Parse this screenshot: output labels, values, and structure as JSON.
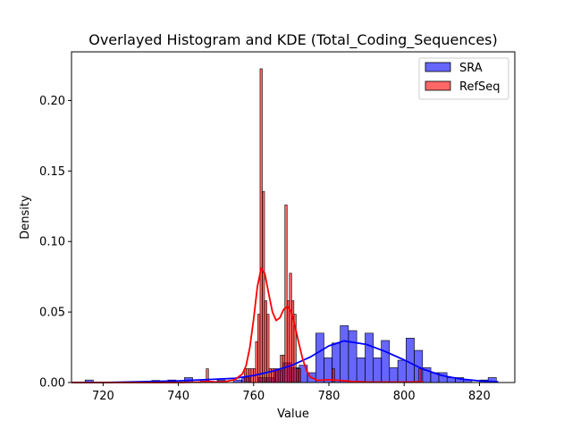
{
  "chart_data": {
    "type": "histogram",
    "title": "Overlayed Histogram and KDE (Total_Coding_Sequences)",
    "xlabel": "Value",
    "ylabel": "Density",
    "xlim": [
      711.6,
      829.4
    ],
    "ylim": [
      0,
      0.2345
    ],
    "xticks": [
      720,
      740,
      760,
      780,
      800,
      820
    ],
    "yticks": [
      0.0,
      0.05,
      0.1,
      0.15,
      0.2
    ],
    "ytick_labels": [
      "0.00",
      "0.05",
      "0.10",
      "0.15",
      "0.20"
    ],
    "grid": false,
    "legend_position": "upper right",
    "series": [
      {
        "name": "SRA",
        "color": "#0000ff",
        "fill_alpha": 0.6,
        "bin_width": 2.18,
        "bins": [
          {
            "x": 716.3,
            "y": 0.0018
          },
          {
            "x": 734.0,
            "y": 0.0015
          },
          {
            "x": 738.3,
            "y": 0.0018
          },
          {
            "x": 742.7,
            "y": 0.0035
          },
          {
            "x": 747.0,
            "y": 0.0018
          },
          {
            "x": 751.4,
            "y": 0.0018
          },
          {
            "x": 755.7,
            "y": 0.0018
          },
          {
            "x": 758.0,
            "y": 0.0035
          },
          {
            "x": 762.3,
            "y": 0.0035
          },
          {
            "x": 764.5,
            "y": 0.0035
          },
          {
            "x": 766.7,
            "y": 0.0088
          },
          {
            "x": 768.8,
            "y": 0.014
          },
          {
            "x": 771.0,
            "y": 0.0105
          },
          {
            "x": 773.2,
            "y": 0.0123
          },
          {
            "x": 775.4,
            "y": 0.007
          },
          {
            "x": 777.6,
            "y": 0.035
          },
          {
            "x": 779.8,
            "y": 0.0175
          },
          {
            "x": 781.9,
            "y": 0.028
          },
          {
            "x": 784.1,
            "y": 0.0403
          },
          {
            "x": 786.3,
            "y": 0.0368
          },
          {
            "x": 788.5,
            "y": 0.0175
          },
          {
            "x": 790.7,
            "y": 0.035
          },
          {
            "x": 792.9,
            "y": 0.0175
          },
          {
            "x": 795.0,
            "y": 0.0298
          },
          {
            "x": 797.2,
            "y": 0.0105
          },
          {
            "x": 799.4,
            "y": 0.0158
          },
          {
            "x": 801.6,
            "y": 0.0315
          },
          {
            "x": 803.8,
            "y": 0.0228
          },
          {
            "x": 806.0,
            "y": 0.0105
          },
          {
            "x": 808.1,
            "y": 0.007
          },
          {
            "x": 810.3,
            "y": 0.007
          },
          {
            "x": 812.5,
            "y": 0.0035
          },
          {
            "x": 814.7,
            "y": 0.0035
          },
          {
            "x": 816.9,
            "y": 0.0018
          },
          {
            "x": 821.2,
            "y": 0.0018
          },
          {
            "x": 823.4,
            "y": 0.0035
          }
        ],
        "kde": {
          "x": [
            711.6,
            720,
            740,
            755,
            760,
            765,
            770,
            775,
            780,
            784,
            790,
            795,
            800,
            805,
            810,
            815,
            820,
            825
          ],
          "y": [
            0.0,
            0.0,
            0.0012,
            0.003,
            0.005,
            0.008,
            0.012,
            0.018,
            0.026,
            0.0295,
            0.027,
            0.022,
            0.016,
            0.0095,
            0.005,
            0.0025,
            0.0012,
            0.0005
          ]
        }
      },
      {
        "name": "RefSeq",
        "color": "#ff0000",
        "fill_alpha": 0.6,
        "bin_width": 0.6,
        "bins": [
          {
            "x": 747.7,
            "y": 0.0098
          },
          {
            "x": 757.8,
            "y": 0.0098
          },
          {
            "x": 758.4,
            "y": 0.0098
          },
          {
            "x": 759.0,
            "y": 0.0098
          },
          {
            "x": 759.6,
            "y": 0.0098
          },
          {
            "x": 760.2,
            "y": 0.0098
          },
          {
            "x": 760.8,
            "y": 0.029
          },
          {
            "x": 761.4,
            "y": 0.0484
          },
          {
            "x": 762.0,
            "y": 0.2225
          },
          {
            "x": 762.6,
            "y": 0.1355
          },
          {
            "x": 763.2,
            "y": 0.058
          },
          {
            "x": 763.8,
            "y": 0.0484
          },
          {
            "x": 764.4,
            "y": 0.0098
          },
          {
            "x": 765.0,
            "y": 0.0098
          },
          {
            "x": 765.6,
            "y": 0.0098
          },
          {
            "x": 766.2,
            "y": 0.0098
          },
          {
            "x": 766.8,
            "y": 0.0098
          },
          {
            "x": 767.4,
            "y": 0.0194
          },
          {
            "x": 768.0,
            "y": 0.0194
          },
          {
            "x": 768.6,
            "y": 0.126
          },
          {
            "x": 769.2,
            "y": 0.058
          },
          {
            "x": 769.8,
            "y": 0.0775
          },
          {
            "x": 770.4,
            "y": 0.058
          },
          {
            "x": 771.0,
            "y": 0.0484
          },
          {
            "x": 771.6,
            "y": 0.0098
          },
          {
            "x": 772.2,
            "y": 0.0098
          },
          {
            "x": 781.2,
            "y": 0.0098
          },
          {
            "x": 804.2,
            "y": 0.0098
          }
        ],
        "kde": {
          "x": [
            711.6,
            740,
            745,
            748,
            750,
            752,
            755,
            757,
            758,
            759,
            760,
            761,
            762,
            763,
            764,
            765,
            766,
            767,
            768,
            769,
            770,
            771,
            772,
            773,
            774,
            775,
            777,
            780,
            783,
            786,
            790,
            800,
            805
          ],
          "y": [
            0.0,
            0.0,
            0.0003,
            0.0008,
            0.0004,
            0.0005,
            0.002,
            0.006,
            0.012,
            0.025,
            0.045,
            0.068,
            0.081,
            0.077,
            0.063,
            0.05,
            0.044,
            0.046,
            0.052,
            0.054,
            0.05,
            0.04,
            0.028,
            0.017,
            0.009,
            0.004,
            0.0015,
            0.002,
            0.0015,
            0.0008,
            0.0004,
            0.0003,
            0.0005
          ]
        }
      }
    ]
  }
}
